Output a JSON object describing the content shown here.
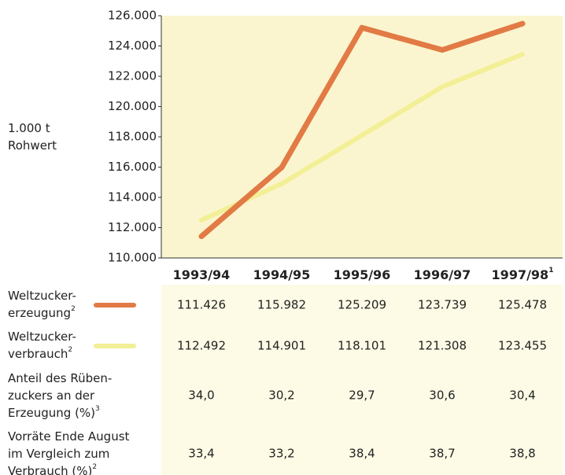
{
  "chart_data": {
    "type": "line",
    "y_label": [
      "1.000 t",
      "Rohwert"
    ],
    "categories": [
      "1993/94",
      "1994/95",
      "1995/96",
      "1996/97",
      "1997/98"
    ],
    "category_footnotes": [
      null,
      null,
      null,
      null,
      "1"
    ],
    "ylim": [
      110000,
      126000
    ],
    "yticks": [
      {
        "value": 110000,
        "label": "110.000"
      },
      {
        "value": 112000,
        "label": "112.000"
      },
      {
        "value": 114000,
        "label": "114.000"
      },
      {
        "value": 116000,
        "label": "116.000"
      },
      {
        "value": 118000,
        "label": "118.000"
      },
      {
        "value": 120000,
        "label": "120.000"
      },
      {
        "value": 122000,
        "label": "122.000"
      },
      {
        "value": 124000,
        "label": "124.000"
      },
      {
        "value": 126000,
        "label": "126.000"
      }
    ],
    "background": "#fbf5cf",
    "series": [
      {
        "name": [
          "Weltzucker-",
          "erzeugung"
        ],
        "footnote": "2",
        "color": "#e27a45",
        "values": [
          111426,
          115982,
          125209,
          123739,
          125478
        ],
        "value_labels": [
          "111.426",
          "115.982",
          "125.209",
          "123.739",
          "125.478"
        ]
      },
      {
        "name": [
          "Weltzucker-",
          "verbrauch"
        ],
        "footnote": "2",
        "color": "#f2ef96",
        "values": [
          112492,
          114901,
          118101,
          121308,
          123455
        ],
        "value_labels": [
          "112.492",
          "114.901",
          "118.101",
          "121.308",
          "123.455"
        ]
      }
    ],
    "table": {
      "rows": [
        {
          "label": [
            "Anteil des Rüben-",
            "zuckers an der",
            "Erzeugung (%)"
          ],
          "footnote": "3",
          "cells": [
            "34,0",
            "30,2",
            "29,7",
            "30,6",
            "30,4"
          ]
        },
        {
          "label": [
            "Vorräte Ende August",
            "im Vergleich zum",
            "Verbrauch (%)"
          ],
          "footnote": "2",
          "cells": [
            "33,4",
            "33,2",
            "38,4",
            "38,7",
            "38,8"
          ]
        }
      ]
    }
  }
}
